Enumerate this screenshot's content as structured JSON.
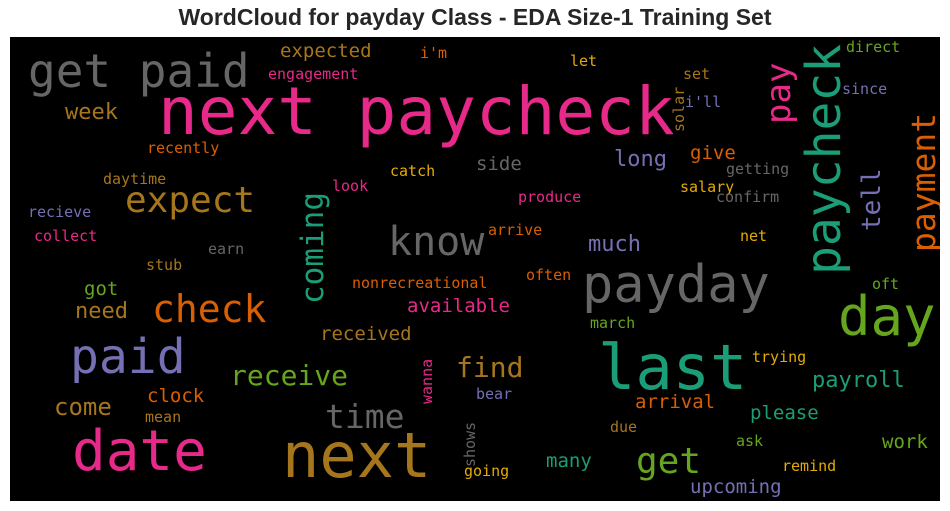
{
  "chart_data": {
    "type": "wordcloud",
    "title": "WordCloud for payday Class - EDA Size-1 Training Set",
    "background": "#000000",
    "words": [
      {
        "text": "next paycheck",
        "color": "#e7298a"
      },
      {
        "text": "get paid",
        "color": "#666666"
      },
      {
        "text": "paycheck",
        "color": "#1b9e77"
      },
      {
        "text": "pay",
        "color": "#e7298a"
      },
      {
        "text": "payment",
        "color": "#d95f02"
      },
      {
        "text": "tell",
        "color": "#7570b3"
      },
      {
        "text": "expected",
        "color": "#a6761d"
      },
      {
        "text": "i'm",
        "color": "#d95f02"
      },
      {
        "text": "engagement",
        "color": "#e7298a"
      },
      {
        "text": "let",
        "color": "#e6ab02"
      },
      {
        "text": "set",
        "color": "#a6761d"
      },
      {
        "text": "solar",
        "color": "#a6761d"
      },
      {
        "text": "i'll",
        "color": "#7570b3"
      },
      {
        "text": "direct",
        "color": "#66a61e"
      },
      {
        "text": "since",
        "color": "#7570b3"
      },
      {
        "text": "week",
        "color": "#a6761d"
      },
      {
        "text": "expect",
        "color": "#a6761d"
      },
      {
        "text": "recently",
        "color": "#d95f02"
      },
      {
        "text": "catch",
        "color": "#e6ab02"
      },
      {
        "text": "side",
        "color": "#666666"
      },
      {
        "text": "long",
        "color": "#7570b3"
      },
      {
        "text": "give",
        "color": "#d95f02"
      },
      {
        "text": "getting",
        "color": "#666666"
      },
      {
        "text": "salary",
        "color": "#e6ab02"
      },
      {
        "text": "confirm",
        "color": "#666666"
      },
      {
        "text": "daytime",
        "color": "#a6761d"
      },
      {
        "text": "look",
        "color": "#e7298a"
      },
      {
        "text": "produce",
        "color": "#e7298a"
      },
      {
        "text": "recieve",
        "color": "#7570b3"
      },
      {
        "text": "collect",
        "color": "#e7298a"
      },
      {
        "text": "know",
        "color": "#666666"
      },
      {
        "text": "coming",
        "color": "#1b9e77"
      },
      {
        "text": "arrive",
        "color": "#d95f02"
      },
      {
        "text": "much",
        "color": "#7570b3"
      },
      {
        "text": "net",
        "color": "#e6ab02"
      },
      {
        "text": "earn",
        "color": "#666666"
      },
      {
        "text": "stub",
        "color": "#a6761d"
      },
      {
        "text": "payday",
        "color": "#666666"
      },
      {
        "text": "day",
        "color": "#66a61e"
      },
      {
        "text": "got",
        "color": "#66a61e"
      },
      {
        "text": "nonrecreational",
        "color": "#d95f02"
      },
      {
        "text": "often",
        "color": "#d95f02"
      },
      {
        "text": "oft",
        "color": "#66a61e"
      },
      {
        "text": "check",
        "color": "#d95f02"
      },
      {
        "text": "need",
        "color": "#a6761d"
      },
      {
        "text": "available",
        "color": "#e7298a"
      },
      {
        "text": "march",
        "color": "#66a61e"
      },
      {
        "text": "paid",
        "color": "#7570b3"
      },
      {
        "text": "received",
        "color": "#a6761d"
      },
      {
        "text": "last",
        "color": "#1b9e77"
      },
      {
        "text": "wanna",
        "color": "#e7298a"
      },
      {
        "text": "trying",
        "color": "#e6ab02"
      },
      {
        "text": "receive",
        "color": "#66a61e"
      },
      {
        "text": "find",
        "color": "#a6761d"
      },
      {
        "text": "payroll",
        "color": "#1b9e77"
      },
      {
        "text": "bear",
        "color": "#7570b3"
      },
      {
        "text": "come",
        "color": "#a6761d"
      },
      {
        "text": "clock",
        "color": "#d95f02"
      },
      {
        "text": "mean",
        "color": "#a6761d"
      },
      {
        "text": "time",
        "color": "#666666"
      },
      {
        "text": "arrival",
        "color": "#d95f02"
      },
      {
        "text": "please",
        "color": "#1b9e77"
      },
      {
        "text": "shows",
        "color": "#666666"
      },
      {
        "text": "due",
        "color": "#a6761d"
      },
      {
        "text": "ask",
        "color": "#66a61e"
      },
      {
        "text": "work",
        "color": "#66a61e"
      },
      {
        "text": "date",
        "color": "#e7298a"
      },
      {
        "text": "next",
        "color": "#a6761d"
      },
      {
        "text": "get",
        "color": "#66a61e"
      },
      {
        "text": "remind",
        "color": "#e6ab02"
      },
      {
        "text": "many",
        "color": "#1b9e77"
      },
      {
        "text": "going",
        "color": "#e6ab02"
      },
      {
        "text": "upcoming",
        "color": "#7570b3"
      }
    ]
  }
}
